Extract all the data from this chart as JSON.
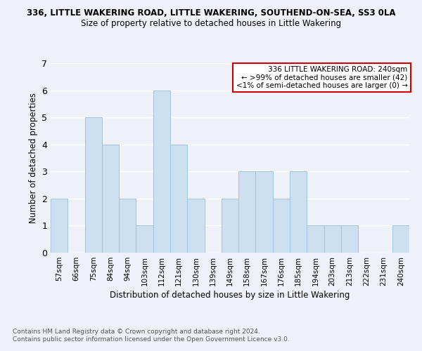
{
  "title": "336, LITTLE WAKERING ROAD, LITTLE WAKERING, SOUTHEND-ON-SEA, SS3 0LA",
  "subtitle": "Size of property relative to detached houses in Little Wakering",
  "xlabel": "Distribution of detached houses by size in Little Wakering",
  "ylabel": "Number of detached properties",
  "footer_line1": "Contains HM Land Registry data © Crown copyright and database right 2024.",
  "footer_line2": "Contains public sector information licensed under the Open Government Licence v3.0.",
  "categories": [
    "57sqm",
    "66sqm",
    "75sqm",
    "84sqm",
    "94sqm",
    "103sqm",
    "112sqm",
    "121sqm",
    "130sqm",
    "139sqm",
    "149sqm",
    "158sqm",
    "167sqm",
    "176sqm",
    "185sqm",
    "194sqm",
    "203sqm",
    "213sqm",
    "222sqm",
    "231sqm",
    "240sqm"
  ],
  "values": [
    2,
    0,
    5,
    4,
    2,
    1,
    6,
    4,
    2,
    0,
    2,
    3,
    3,
    2,
    3,
    1,
    1,
    1,
    0,
    0,
    1
  ],
  "bar_color": "#cce0f0",
  "bar_edge_color": "#a0c4e0",
  "ylim": [
    0,
    7
  ],
  "yticks": [
    0,
    1,
    2,
    3,
    4,
    5,
    6,
    7
  ],
  "annotation_title": "336 LITTLE WAKERING ROAD: 240sqm",
  "annotation_line1": "← >99% of detached houses are smaller (42)",
  "annotation_line2": "<1% of semi-detached houses are larger (0) →",
  "annotation_box_color": "#ffffff",
  "annotation_box_edge_color": "#cc0000",
  "background_color": "#eef2f8"
}
